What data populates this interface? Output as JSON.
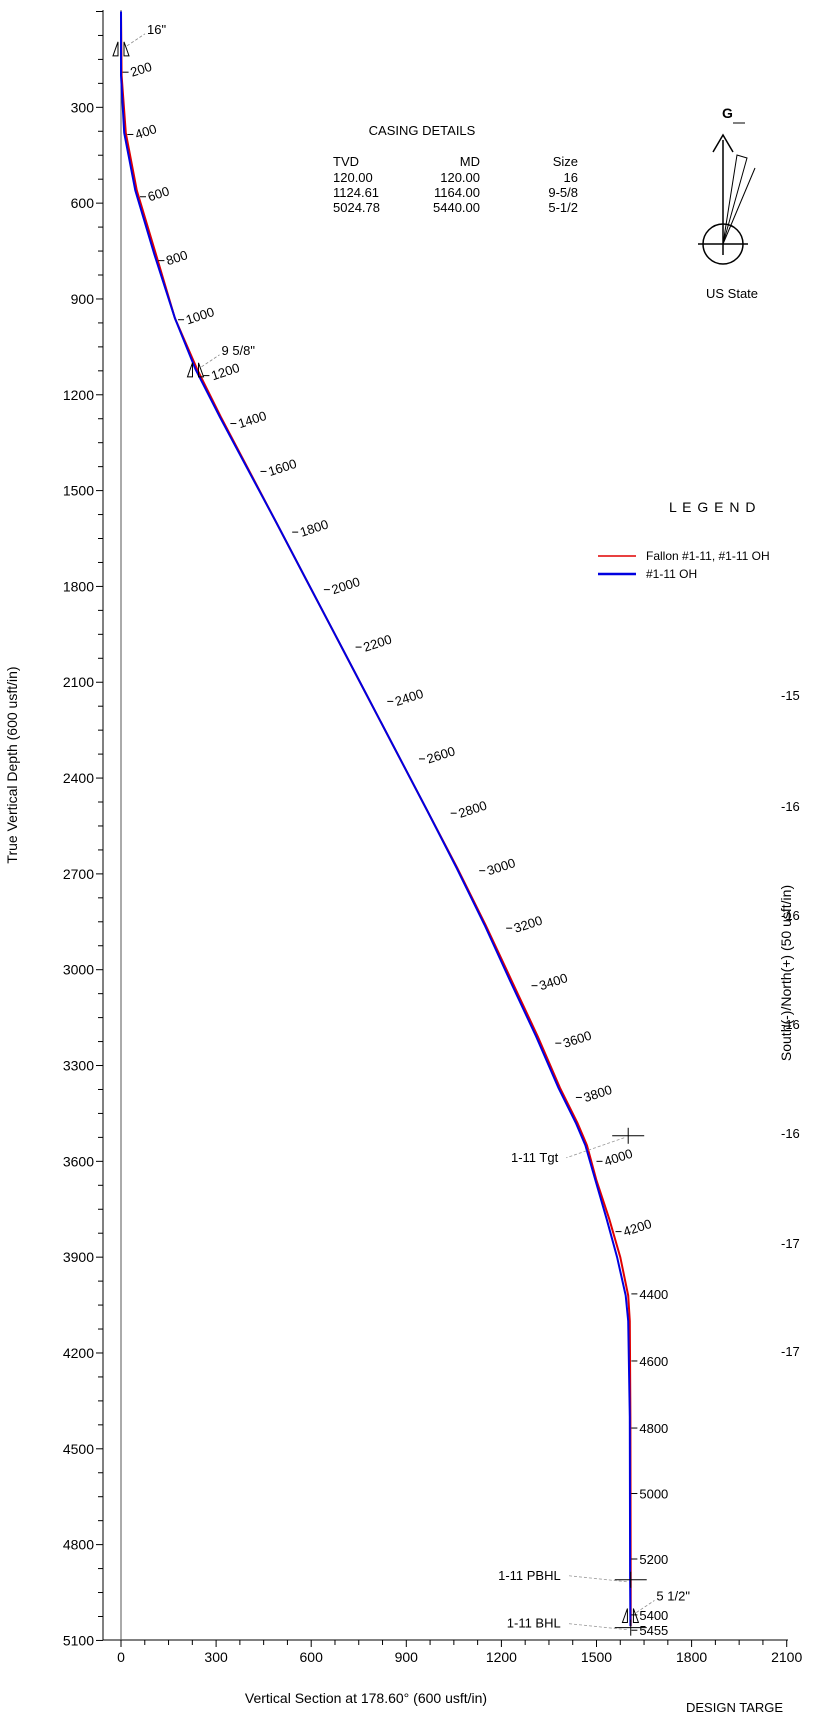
{
  "chart_data": {
    "type": "line",
    "xlabel": "Vertical Section at 178.60° (600 usft/in)",
    "ylabel": "True Vertical Depth (600 usft/in)",
    "xlim": [
      -50,
      2200
    ],
    "ylim": [
      5100,
      0
    ],
    "x_ticks": [
      0,
      300,
      600,
      900,
      1200,
      1500,
      1800,
      2100
    ],
    "y_ticks": [
      300,
      600,
      900,
      1200,
      1500,
      1800,
      2100,
      2400,
      2700,
      3000,
      3300,
      3600,
      3900,
      4200,
      4500,
      4800,
      5100
    ],
    "series": [
      {
        "name": "Fallon #1-11, #1-11 OH",
        "color": "#e00000",
        "points": [
          [
            0,
            0
          ],
          [
            2,
            200
          ],
          [
            15,
            380
          ],
          [
            50,
            560
          ],
          [
            110,
            760
          ],
          [
            170,
            960
          ],
          [
            240,
            1120
          ],
          [
            315,
            1270
          ],
          [
            400,
            1430
          ],
          [
            490,
            1600
          ],
          [
            585,
            1780
          ],
          [
            680,
            1960
          ],
          [
            775,
            2140
          ],
          [
            870,
            2320
          ],
          [
            965,
            2500
          ],
          [
            1060,
            2680
          ],
          [
            1150,
            2860
          ],
          [
            1235,
            3040
          ],
          [
            1315,
            3210
          ],
          [
            1385,
            3370
          ],
          [
            1440,
            3480
          ],
          [
            1470,
            3550
          ],
          [
            1500,
            3660
          ],
          [
            1540,
            3780
          ],
          [
            1575,
            3900
          ],
          [
            1600,
            4020
          ],
          [
            1605,
            4100
          ],
          [
            1607,
            4400
          ],
          [
            1608,
            4900
          ],
          [
            1608,
            5055
          ]
        ]
      },
      {
        "name": "#1-11 OH",
        "color": "#0000e0",
        "points": [
          [
            0,
            0
          ],
          [
            0,
            200
          ],
          [
            10,
            380
          ],
          [
            45,
            560
          ],
          [
            105,
            760
          ],
          [
            170,
            960
          ],
          [
            235,
            1120
          ],
          [
            312,
            1270
          ],
          [
            398,
            1430
          ],
          [
            490,
            1600
          ],
          [
            585,
            1780
          ],
          [
            680,
            1960
          ],
          [
            775,
            2140
          ],
          [
            870,
            2320
          ],
          [
            965,
            2500
          ],
          [
            1058,
            2680
          ],
          [
            1147,
            2860
          ],
          [
            1230,
            3040
          ],
          [
            1310,
            3210
          ],
          [
            1380,
            3370
          ],
          [
            1435,
            3480
          ],
          [
            1465,
            3550
          ],
          [
            1497,
            3660
          ],
          [
            1532,
            3780
          ],
          [
            1565,
            3900
          ],
          [
            1592,
            4020
          ],
          [
            1600,
            4100
          ],
          [
            1605,
            4400
          ],
          [
            1606,
            4900
          ],
          [
            1607,
            5055
          ]
        ]
      }
    ],
    "md_labels": [
      {
        "text": "200",
        "x": 5,
        "y": 190
      },
      {
        "text": "400",
        "x": 20,
        "y": 385
      },
      {
        "text": "600",
        "x": 60,
        "y": 580
      },
      {
        "text": "800",
        "x": 118,
        "y": 780
      },
      {
        "text": "1000",
        "x": 180,
        "y": 965
      },
      {
        "text": "1200",
        "x": 260,
        "y": 1140
      },
      {
        "text": "1400",
        "x": 345,
        "y": 1290
      },
      {
        "text": "1600",
        "x": 440,
        "y": 1440
      },
      {
        "text": "1800",
        "x": 540,
        "y": 1630
      },
      {
        "text": "2000",
        "x": 640,
        "y": 1810
      },
      {
        "text": "2200",
        "x": 740,
        "y": 1990
      },
      {
        "text": "2400",
        "x": 840,
        "y": 2160
      },
      {
        "text": "2600",
        "x": 940,
        "y": 2340
      },
      {
        "text": "2800",
        "x": 1040,
        "y": 2510
      },
      {
        "text": "3000",
        "x": 1130,
        "y": 2690
      },
      {
        "text": "3200",
        "x": 1215,
        "y": 2870
      },
      {
        "text": "3400",
        "x": 1295,
        "y": 3050
      },
      {
        "text": "3600",
        "x": 1370,
        "y": 3230
      },
      {
        "text": "3800",
        "x": 1435,
        "y": 3400
      },
      {
        "text": "4000",
        "x": 1500,
        "y": 3600
      },
      {
        "text": "4200",
        "x": 1560,
        "y": 3820
      },
      {
        "text": "4400",
        "x": 1610,
        "y": 4015
      },
      {
        "text": "4600",
        "x": 1610,
        "y": 4225
      },
      {
        "text": "4800",
        "x": 1610,
        "y": 4435
      },
      {
        "text": "5000",
        "x": 1610,
        "y": 4640
      },
      {
        "text": "5200",
        "x": 1610,
        "y": 4845
      },
      {
        "text": "5400",
        "x": 1610,
        "y": 5020
      },
      {
        "text": "5455",
        "x": 1610,
        "y": 5068
      }
    ],
    "casing_markers": [
      {
        "label": "16\"",
        "x": 0,
        "y": 120
      },
      {
        "label": "9 5/8\"",
        "x": 235,
        "y": 1125
      },
      {
        "label": "5 1/2\"",
        "x": 1607,
        "y": 5025
      }
    ],
    "targets": [
      {
        "label": "1-11 Tgt",
        "x": 1600,
        "y": 3520
      },
      {
        "label": "1-11 PBHL",
        "x": 1608,
        "y": 4910
      },
      {
        "label": "1-11 BHL",
        "x": 1608,
        "y": 5060
      }
    ]
  },
  "casing_details": {
    "title": "CASING DETAILS",
    "headers": [
      "TVD",
      "MD",
      "Size"
    ],
    "rows": [
      [
        "120.00",
        "120.00",
        "16"
      ],
      [
        "1124.61",
        "1164.00",
        "9-5/8"
      ],
      [
        "5024.78",
        "5440.00",
        "5-1/2"
      ]
    ]
  },
  "north_arrow": {
    "label": "G",
    "note": "US State"
  },
  "legend": {
    "title": "L E G E N D",
    "items": [
      {
        "label": "Fallon #1-11, #1-11 OH",
        "color": "#e00000"
      },
      {
        "label": "#1-11 OH",
        "color": "#0000e0"
      }
    ]
  },
  "plan_view": {
    "ylabel": "South(-)/North(+)  (50 usft/in)",
    "tick_labels": [
      "-15",
      "-16",
      "-16",
      "-16",
      "-16",
      "-17",
      "-17"
    ]
  },
  "footer_fragment": "DESIGN TARGE"
}
